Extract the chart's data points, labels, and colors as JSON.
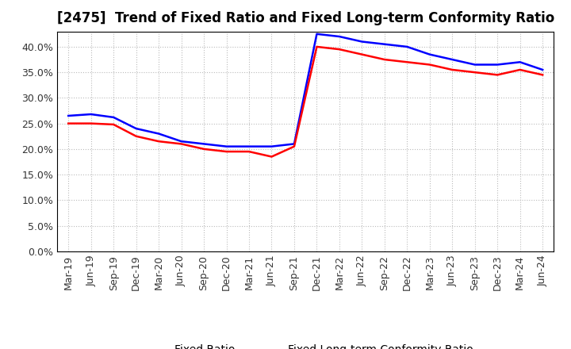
{
  "title": "[2475]  Trend of Fixed Ratio and Fixed Long-term Conformity Ratio",
  "x_labels": [
    "Mar-19",
    "Jun-19",
    "Sep-19",
    "Dec-19",
    "Mar-20",
    "Jun-20",
    "Sep-20",
    "Dec-20",
    "Mar-21",
    "Jun-21",
    "Sep-21",
    "Dec-21",
    "Mar-22",
    "Jun-22",
    "Sep-22",
    "Dec-22",
    "Mar-23",
    "Jun-23",
    "Sep-23",
    "Dec-23",
    "Mar-24",
    "Jun-24"
  ],
  "fixed_ratio": [
    26.5,
    26.8,
    26.2,
    24.0,
    23.0,
    21.5,
    21.0,
    20.5,
    20.5,
    20.5,
    21.0,
    42.5,
    42.0,
    41.0,
    40.5,
    40.0,
    38.5,
    37.5,
    36.5,
    36.5,
    37.0,
    35.5
  ],
  "fixed_lt_ratio": [
    25.0,
    25.0,
    24.8,
    22.5,
    21.5,
    21.0,
    20.0,
    19.5,
    19.5,
    18.5,
    20.5,
    40.0,
    39.5,
    38.5,
    37.5,
    37.0,
    36.5,
    35.5,
    35.0,
    34.5,
    35.5,
    34.5
  ],
  "fixed_ratio_color": "#0000FF",
  "fixed_lt_ratio_color": "#FF0000",
  "ylim": [
    0,
    43
  ],
  "yticks": [
    0.0,
    5.0,
    10.0,
    15.0,
    20.0,
    25.0,
    30.0,
    35.0,
    40.0
  ],
  "background_color": "#FFFFFF",
  "plot_background_color": "#FFFFFF",
  "grid_color": "#BBBBBB",
  "legend_fixed_ratio": "Fixed Ratio",
  "legend_fixed_lt_ratio": "Fixed Long-term Conformity Ratio",
  "line_width": 1.8,
  "title_fontsize": 12,
  "tick_fontsize": 9,
  "legend_fontsize": 10
}
